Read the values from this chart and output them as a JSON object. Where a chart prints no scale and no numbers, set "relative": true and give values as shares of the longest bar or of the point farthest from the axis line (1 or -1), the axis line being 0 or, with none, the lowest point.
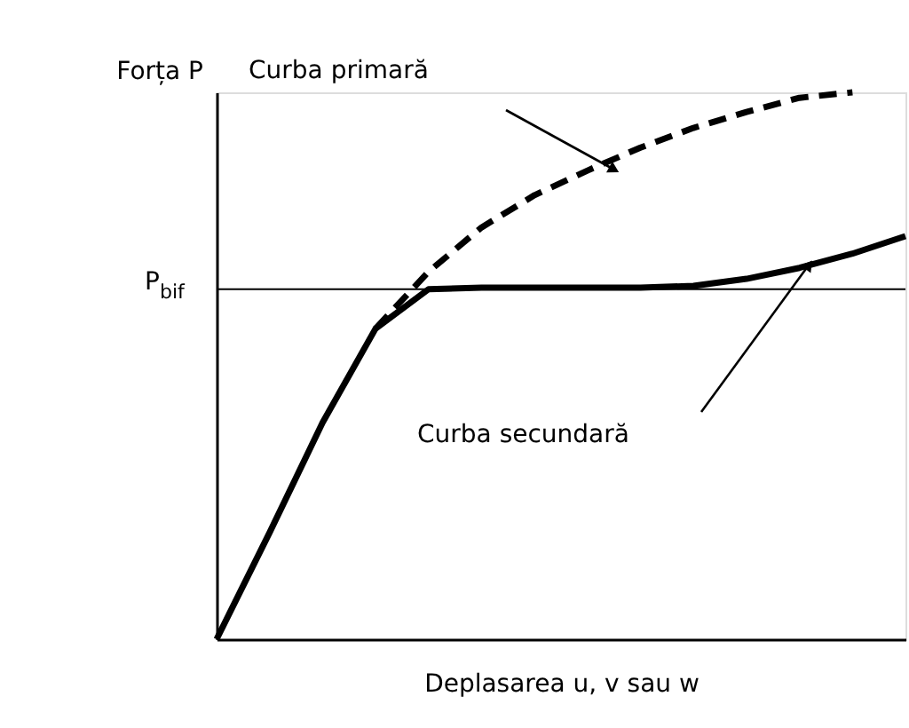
{
  "chart_data": {
    "type": "line",
    "relative": true,
    "xlabel": "Deplasarea u, v sau w",
    "ylabel": "Forța P",
    "tick_labels": false,
    "grid": false,
    "marker": "none",
    "categories": [
      null,
      null,
      null,
      null,
      null,
      null,
      null,
      null,
      null,
      null,
      null,
      null,
      null,
      null
    ],
    "series": [
      {
        "color": "#000000",
        "line_style": "solid",
        "values": [
          0,
          0.195,
          0.396,
          0.568,
          0.64,
          0.643,
          0.643,
          0.643,
          0.643,
          0.646,
          0.659,
          0.679,
          0.705,
          0.737
        ]
      },
      {
        "color": "#000000",
        "line_style": "dashed",
        "values": [
          null,
          null,
          null,
          0.568,
          0.672,
          0.753,
          0.812,
          0.857,
          0.899,
          0.935,
          0.964,
          0.99,
          1.0,
          null
        ]
      }
    ],
    "ref_lines": [
      {
        "axis": "y",
        "value": 0.64,
        "label": "P$_{bif}$",
        "color": "#000000"
      }
    ],
    "annotations": [
      "Curba primară",
      "Curba secundară"
    ]
  }
}
